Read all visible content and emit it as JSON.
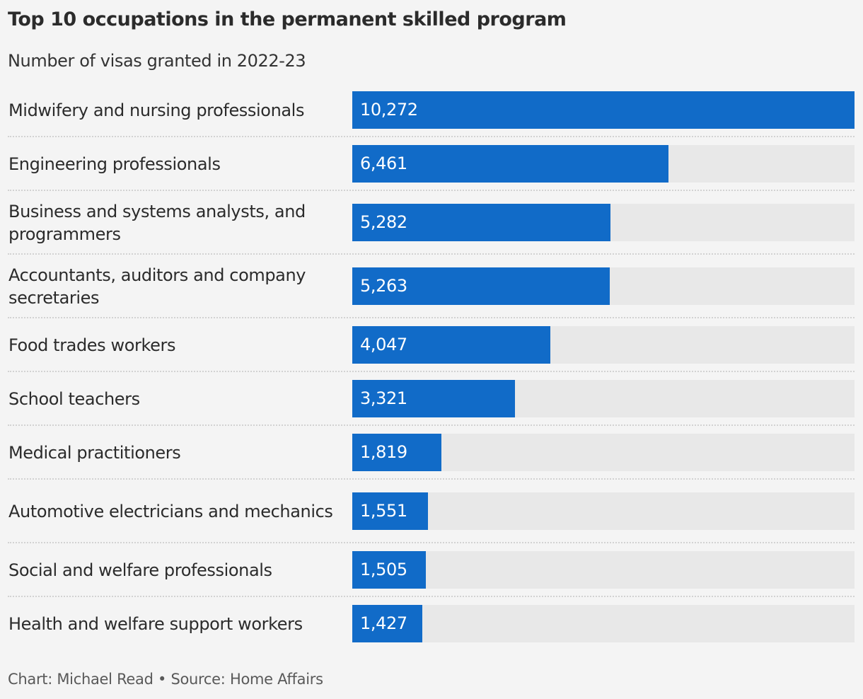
{
  "header": {
    "title": "Top 10 occupations in the permanent skilled program",
    "subtitle": "Number of visas granted in 2022-23"
  },
  "footer": {
    "credit": "Chart: Michael Read • Source: Home Affairs"
  },
  "colors": {
    "bar": "#116bc8",
    "track": "#e8e8e8",
    "background": "#f4f4f4"
  },
  "rows": [
    {
      "label": "Midwifery and nursing professionals",
      "value": "10,272",
      "num": 10272
    },
    {
      "label": "Engineering professionals",
      "value": "6,461",
      "num": 6461
    },
    {
      "label": "Business and systems analysts, and programmers",
      "value": "5,282",
      "num": 5282
    },
    {
      "label": "Accountants, auditors and company secretaries",
      "value": "5,263",
      "num": 5263
    },
    {
      "label": "Food trades workers",
      "value": "4,047",
      "num": 4047
    },
    {
      "label": "School teachers",
      "value": "3,321",
      "num": 3321
    },
    {
      "label": "Medical practitioners",
      "value": "1,819",
      "num": 1819
    },
    {
      "label": "Automotive electricians and mechanics",
      "value": "1,551",
      "num": 1551
    },
    {
      "label": "Social and welfare professionals",
      "value": "1,505",
      "num": 1505
    },
    {
      "label": "Health and welfare support workers",
      "value": "1,427",
      "num": 1427
    }
  ],
  "chart_data": {
    "type": "bar",
    "orientation": "horizontal",
    "title": "Top 10 occupations in the permanent skilled program",
    "subtitle": "Number of visas granted in 2022-23",
    "categories": [
      "Midwifery and nursing professionals",
      "Engineering professionals",
      "Business and systems analysts, and programmers",
      "Accountants, auditors and company secretaries",
      "Food trades workers",
      "School teachers",
      "Medical practitioners",
      "Automotive electricians and mechanics",
      "Social and welfare professionals",
      "Health and welfare support workers"
    ],
    "values": [
      10272,
      6461,
      5282,
      5263,
      4047,
      3321,
      1819,
      1551,
      1505,
      1427
    ],
    "xlabel": "",
    "ylabel": "",
    "xlim": [
      0,
      10272
    ],
    "grid": false,
    "legend": null,
    "source": "Chart: Michael Read • Source: Home Affairs"
  }
}
